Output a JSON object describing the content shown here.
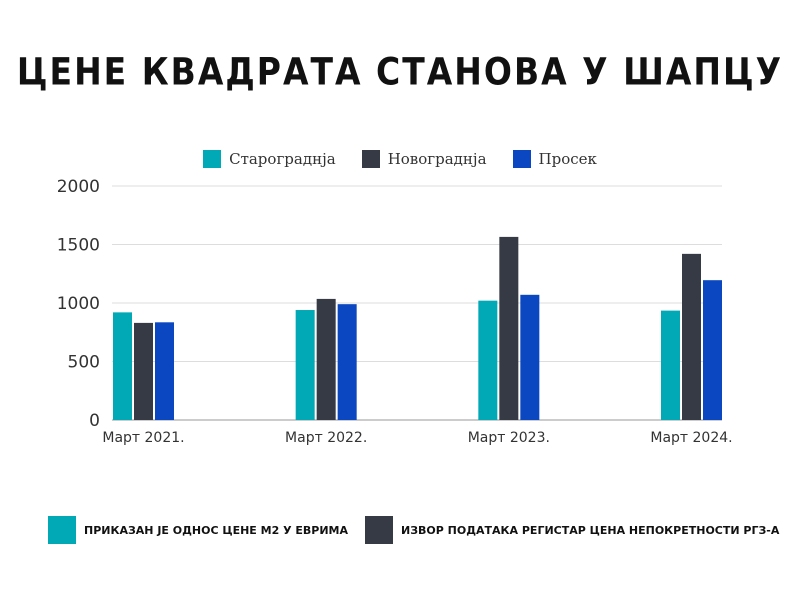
{
  "title": "ЦЕНЕ КВАДРАТА СТАНОВА У ШАПЦУ",
  "colors": {
    "series1": "#00A9B5",
    "series2": "#363A44",
    "series3": "#0A47C0",
    "grid": "#dddddd",
    "axis": "#999999"
  },
  "chart_data": {
    "type": "bar",
    "categories": [
      "Март 2021.",
      "Март 2022.",
      "Март 2023.",
      "Март 2024."
    ],
    "series": [
      {
        "name": "Старограднја",
        "values": [
          920,
          940,
          1020,
          935
        ]
      },
      {
        "name": "Новограднја",
        "values": [
          830,
          1035,
          1565,
          1420
        ]
      },
      {
        "name": "Просек",
        "values": [
          835,
          990,
          1070,
          1195
        ]
      }
    ],
    "yticks": [
      0,
      500,
      1000,
      1500,
      2000
    ],
    "ylim": [
      0,
      2000
    ],
    "grid": true,
    "legend_position": "top-center"
  },
  "notes": [
    {
      "text": "ПРИКАЗАН ЈЕ ОДНОС ЦЕНЕ М2 У ЕВРИМА",
      "color": "#00A9B5"
    },
    {
      "text": "ИЗВОР ПОДАТАКА  РЕГИСТАР ЦЕНА НЕПОКРЕТНОСТИ РГЗ-А",
      "color": "#363A44"
    }
  ]
}
